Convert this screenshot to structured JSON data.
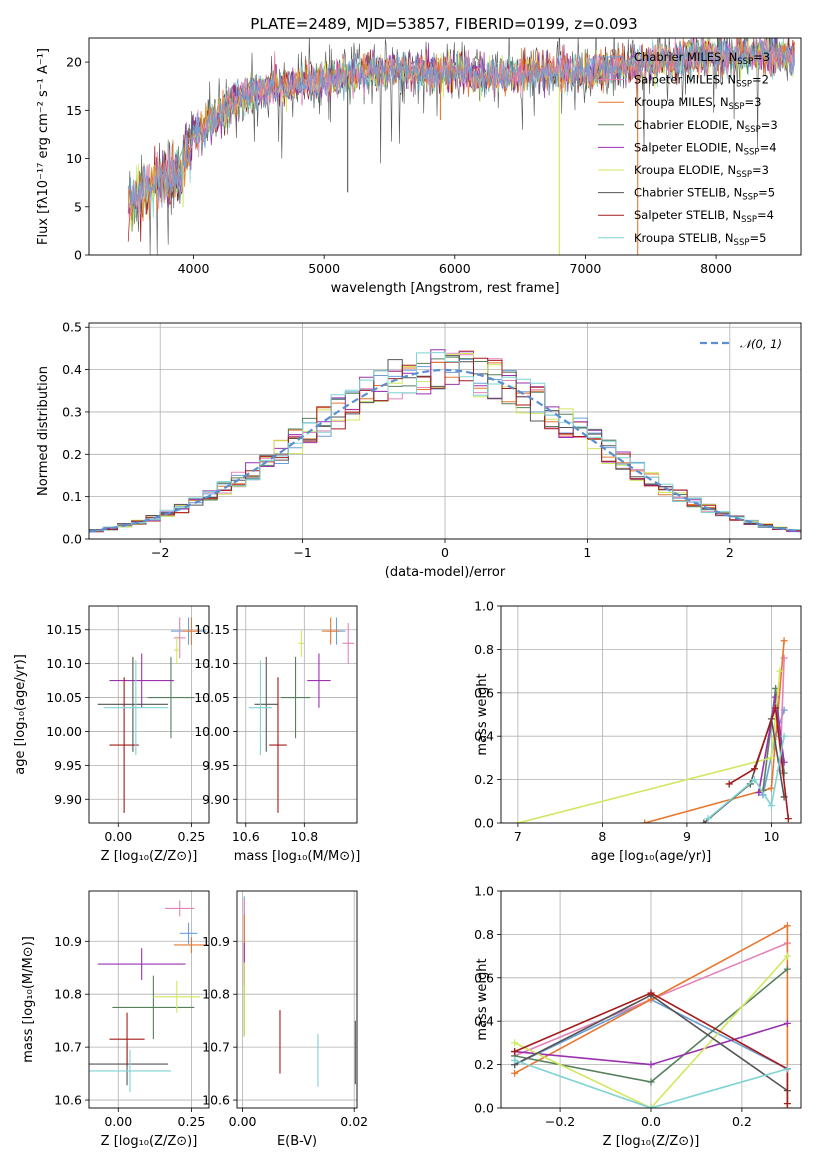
{
  "title": "PLATE=2489, MJD=53857, FIBERID=0199, z=0.093",
  "series_styles": [
    {
      "name": "Chabrier MILES",
      "nssp": "3",
      "color": "#6a9fd8"
    },
    {
      "name": "Salpeter MILES",
      "nssp": "2",
      "color": "#e383b8"
    },
    {
      "name": "Kroupa MILES",
      "nssp": "3",
      "color": "#e8772e"
    },
    {
      "name": "Chabrier ELODIE",
      "nssp": "3",
      "color": "#56805c"
    },
    {
      "name": "Salpeter ELODIE",
      "nssp": "4",
      "color": "#9a32b0"
    },
    {
      "name": "Kroupa ELODIE",
      "nssp": "3",
      "color": "#cfe85e"
    },
    {
      "name": "Chabrier STELIB",
      "nssp": "5",
      "color": "#555555"
    },
    {
      "name": "Salpeter STELIB",
      "nssp": "4",
      "color": "#a31a1a"
    },
    {
      "name": "Kroupa STELIB",
      "nssp": "5",
      "color": "#7fd3d3"
    }
  ],
  "chart_data": [
    {
      "id": "spectrum",
      "type": "line",
      "xlabel": "wavelength [Angstrom, rest frame]",
      "ylabel": "Flux [fλ10⁻¹⁷ erg cm⁻² s⁻¹ A⁻¹]",
      "xlim": [
        3200,
        8650
      ],
      "ylim": [
        0,
        22.5
      ],
      "xticks": [
        4000,
        5000,
        6000,
        7000,
        8000
      ],
      "yticks": [
        0,
        5,
        10,
        15,
        20
      ],
      "envelope": {
        "x": [
          3500,
          3700,
          3900,
          4000,
          4200,
          4400,
          4600,
          4800,
          5000,
          5200,
          5400,
          5600,
          5800,
          6000,
          6200,
          6400,
          6600,
          6800,
          7000,
          7200,
          7400,
          7600,
          7800,
          8000,
          8200,
          8400,
          8600
        ],
        "y": [
          5.2,
          7.8,
          8.5,
          12.4,
          14.6,
          16.8,
          17.2,
          17.9,
          18.0,
          18.6,
          19.1,
          19.3,
          18.8,
          19.2,
          18.5,
          18.5,
          19.0,
          18.9,
          18.8,
          19.5,
          19.8,
          20.2,
          20.5,
          20.6,
          20.6,
          20.8,
          20.5
        ]
      }
    },
    {
      "id": "residuals",
      "type": "line",
      "xlabel": "(data-model)/error",
      "ylabel": "Normed distribution",
      "xlim": [
        -2.5,
        2.5
      ],
      "ylim": [
        0,
        0.51
      ],
      "xticks": [
        -2,
        -1,
        0,
        1,
        2
      ],
      "yticks": [
        0,
        0.1,
        0.2,
        0.3,
        0.4,
        0.5
      ],
      "legend": "𝒩(0, 1)"
    },
    {
      "id": "age_vs_Z",
      "type": "scatter",
      "xlabel": "Z [log₁₀(Z/Z⊙)]",
      "ylabel": "age  [log₁₀(age/yr)]",
      "xlim": [
        -0.1,
        0.31
      ],
      "ylim": [
        9.865,
        10.185
      ],
      "xticks": [
        0.0,
        0.25
      ],
      "yticks": [
        9.9,
        9.95,
        10.0,
        10.05,
        10.1,
        10.15
      ],
      "points": [
        {
          "x": 0.24,
          "y": 10.148,
          "xe": 0.06,
          "ye": 0.02
        },
        {
          "x": 0.21,
          "y": 10.138,
          "xe": 0.02,
          "ye": 0.03
        },
        {
          "x": 0.25,
          "y": 10.148,
          "xe": 0.03,
          "ye": 0.02
        },
        {
          "x": 0.18,
          "y": 10.05,
          "xe": 0.08,
          "ye": 0.06
        },
        {
          "x": 0.08,
          "y": 10.075,
          "xe": 0.11,
          "ye": 0.04
        },
        {
          "x": 0.2,
          "y": 10.12,
          "xe": 0.01,
          "ye": 0.02
        },
        {
          "x": 0.05,
          "y": 10.04,
          "xe": 0.12,
          "ye": 0.07
        },
        {
          "x": 0.02,
          "y": 9.98,
          "xe": 0.05,
          "ye": 0.1
        },
        {
          "x": 0.06,
          "y": 10.035,
          "xe": 0.11,
          "ye": 0.07
        }
      ]
    },
    {
      "id": "age_vs_mass",
      "type": "scatter",
      "xlabel": "mass [log₁₀(M/M⊙)]",
      "ylabel": "",
      "xlim": [
        10.57,
        10.98
      ],
      "ylim": [
        9.865,
        10.185
      ],
      "xticks": [
        10.6,
        10.8
      ],
      "yticks": [
        9.9,
        9.95,
        10.0,
        10.05,
        10.1,
        10.15
      ],
      "points": [
        {
          "x": 10.91,
          "y": 10.148,
          "xe": 0.03,
          "ye": 0.02
        },
        {
          "x": 10.95,
          "y": 10.13,
          "xe": 0.02,
          "ye": 0.03
        },
        {
          "x": 10.89,
          "y": 10.148,
          "xe": 0.03,
          "ye": 0.02
        },
        {
          "x": 10.77,
          "y": 10.05,
          "xe": 0.05,
          "ye": 0.06
        },
        {
          "x": 10.85,
          "y": 10.075,
          "xe": 0.04,
          "ye": 0.04
        },
        {
          "x": 10.79,
          "y": 10.13,
          "xe": 0.01,
          "ye": 0.02
        },
        {
          "x": 10.67,
          "y": 10.04,
          "xe": 0.04,
          "ye": 0.07
        },
        {
          "x": 10.71,
          "y": 9.98,
          "xe": 0.03,
          "ye": 0.1
        },
        {
          "x": 10.65,
          "y": 10.035,
          "xe": 0.04,
          "ye": 0.07
        }
      ]
    },
    {
      "id": "massweight_vs_age",
      "type": "line",
      "xlabel": "age  [log₁₀(age/yr)]",
      "ylabel": "mass weight",
      "xlim": [
        6.8,
        10.35
      ],
      "ylim": [
        0,
        1.0
      ],
      "xticks": [
        7,
        8,
        9,
        10
      ],
      "yticks": [
        0.0,
        0.2,
        0.4,
        0.6,
        0.8,
        1.0
      ],
      "series": [
        {
          "x": [
            9.9,
            10.05,
            10.15
          ],
          "y": [
            0.13,
            0.4,
            0.52
          ]
        },
        {
          "x": [
            10.1,
            10.15
          ],
          "y": [
            0.24,
            0.76
          ]
        },
        {
          "x": [
            8.5,
            10.0,
            10.15
          ],
          "y": [
            0.0,
            0.16,
            0.84
          ]
        },
        {
          "x": [
            9.9,
            10.05,
            10.15
          ],
          "y": [
            0.15,
            0.62,
            0.23
          ]
        },
        {
          "x": [
            9.85,
            10.05,
            10.15
          ],
          "y": [
            0.14,
            0.58,
            0.28
          ]
        },
        {
          "x": [
            7.0,
            10.0,
            10.1
          ],
          "y": [
            0.0,
            0.3,
            0.7
          ]
        },
        {
          "x": [
            9.2,
            9.75,
            10.0,
            10.15
          ],
          "y": [
            0.0,
            0.18,
            0.48,
            0.12
          ]
        },
        {
          "x": [
            9.5,
            9.8,
            10.05,
            10.2
          ],
          "y": [
            0.18,
            0.25,
            0.53,
            0.02
          ]
        },
        {
          "x": [
            9.25,
            9.8,
            10.0,
            10.15
          ],
          "y": [
            0.02,
            0.2,
            0.08,
            0.4
          ]
        }
      ]
    },
    {
      "id": "mass_vs_Z",
      "type": "scatter",
      "xlabel": "Z [log₁₀(Z/Z⊙)]",
      "ylabel": "mass [log₁₀(M/M⊙)]",
      "xlim": [
        -0.1,
        0.31
      ],
      "ylim": [
        10.585,
        10.995
      ],
      "xticks": [
        0.0,
        0.25
      ],
      "yticks": [
        10.6,
        10.7,
        10.8,
        10.9
      ],
      "points": [
        {
          "x": 0.24,
          "y": 10.915,
          "xe": 0.03,
          "ye": 0.02
        },
        {
          "x": 0.21,
          "y": 10.962,
          "xe": 0.05,
          "ye": 0.015
        },
        {
          "x": 0.25,
          "y": 10.893,
          "xe": 0.06,
          "ye": 0.015
        },
        {
          "x": 0.12,
          "y": 10.775,
          "xe": 0.14,
          "ye": 0.06
        },
        {
          "x": 0.08,
          "y": 10.857,
          "xe": 0.15,
          "ye": 0.03
        },
        {
          "x": 0.2,
          "y": 10.795,
          "xe": 0.08,
          "ye": 0.03
        },
        {
          "x": 0.03,
          "y": 10.668,
          "xe": 0.14,
          "ye": 0.04
        },
        {
          "x": 0.03,
          "y": 10.715,
          "xe": 0.06,
          "ye": 0.05
        },
        {
          "x": 0.04,
          "y": 10.655,
          "xe": 0.14,
          "ye": 0.04
        }
      ]
    },
    {
      "id": "mass_vs_EBV",
      "type": "scatter",
      "xlabel": "E(B-V)",
      "ylabel": "",
      "xlim": [
        -0.001,
        0.0205
      ],
      "ylim": [
        10.585,
        10.995
      ],
      "xticks": [
        0.0,
        0.02
      ],
      "yticks": [
        10.6,
        10.7,
        10.8,
        10.9
      ],
      "points": [
        {
          "x": 0.0003,
          "y": 10.915,
          "xe": 0,
          "ye": 0.07
        },
        {
          "x": 0.0003,
          "y": 10.9,
          "xe": 0,
          "ye": 0.08
        },
        {
          "x": 0.0003,
          "y": 10.89,
          "xe": 0,
          "ye": 0.06
        },
        {
          "x": 0.0003,
          "y": 10.78,
          "xe": 0,
          "ye": 0.06
        },
        {
          "x": 0.0003,
          "y": 10.857,
          "xe": 0,
          "ye": 0.04
        },
        {
          "x": 0.0003,
          "y": 10.79,
          "xe": 0,
          "ye": 0.07
        },
        {
          "x": 0.0202,
          "y": 10.69,
          "xe": 0,
          "ye": 0.06
        },
        {
          "x": 0.0067,
          "y": 10.71,
          "xe": 0,
          "ye": 0.06
        },
        {
          "x": 0.0135,
          "y": 10.675,
          "xe": 0,
          "ye": 0.05
        }
      ]
    },
    {
      "id": "massweight_vs_Z",
      "type": "line",
      "xlabel": "Z [log₁₀(Z/Z⊙)]",
      "ylabel": "mass weight",
      "xlim": [
        -0.33,
        0.33
      ],
      "ylim": [
        0,
        1.0
      ],
      "xticks": [
        -0.2,
        0.0,
        0.2
      ],
      "yticks": [
        0.0,
        0.2,
        0.4,
        0.6,
        0.8,
        1.0
      ],
      "series": [
        {
          "x": [
            -0.3,
            0.0,
            0.3
          ],
          "y": [
            0.2,
            0.5,
            0.18
          ]
        },
        {
          "x": [
            -0.3,
            0.0,
            0.3
          ],
          "y": [
            0.24,
            0.5,
            0.76
          ]
        },
        {
          "x": [
            -0.3,
            0.0,
            0.3,
            0.3
          ],
          "y": [
            0.16,
            0.5,
            0.84,
            0.0
          ]
        },
        {
          "x": [
            -0.3,
            0.0,
            0.3
          ],
          "y": [
            0.24,
            0.12,
            0.64
          ]
        },
        {
          "x": [
            -0.3,
            0.0,
            0.3
          ],
          "y": [
            0.26,
            0.2,
            0.39
          ]
        },
        {
          "x": [
            -0.3,
            0.0,
            0.3
          ],
          "y": [
            0.3,
            0.0,
            0.7
          ]
        },
        {
          "x": [
            -0.3,
            0.0,
            0.3
          ],
          "y": [
            0.2,
            0.52,
            0.08
          ]
        },
        {
          "x": [
            -0.3,
            0.0,
            0.3,
            0.3
          ],
          "y": [
            0.26,
            0.53,
            0.18,
            0.02
          ]
        },
        {
          "x": [
            -0.3,
            0.0,
            0.3
          ],
          "y": [
            0.22,
            0.0,
            0.18
          ]
        }
      ]
    }
  ]
}
